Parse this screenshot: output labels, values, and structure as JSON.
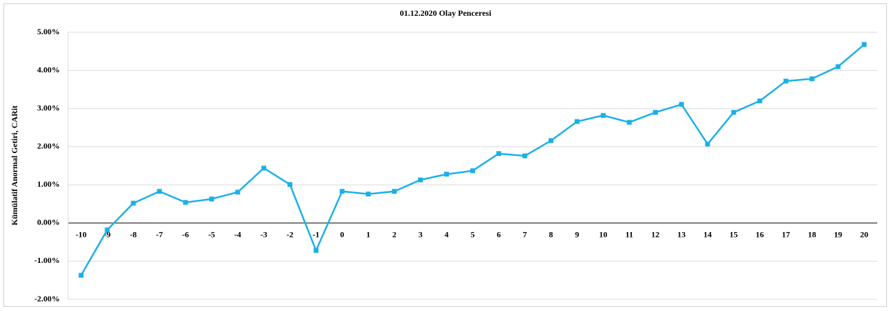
{
  "chart_data": {
    "type": "line",
    "title": "01.12.2020 Olay Penceresi",
    "ylabel": "Kümülatif Anormal Getiri, CARit",
    "categories": [
      "-10",
      "-9",
      "-8",
      "-7",
      "-6",
      "-5",
      "-4",
      "-3",
      "-2",
      "-1",
      "0",
      "1",
      "2",
      "3",
      "4",
      "5",
      "6",
      "7",
      "8",
      "9",
      "10",
      "11",
      "12",
      "13",
      "14",
      "15",
      "16",
      "17",
      "18",
      "19",
      "20"
    ],
    "series": [
      {
        "name": "CARit",
        "color": "#1ab0e8",
        "values": [
          -1.37,
          -0.18,
          0.52,
          0.83,
          0.54,
          0.63,
          0.81,
          1.44,
          1.01,
          -0.72,
          0.83,
          0.76,
          0.83,
          1.13,
          1.28,
          1.37,
          1.82,
          1.76,
          2.16,
          2.66,
          2.82,
          2.64,
          2.9,
          3.11,
          2.07,
          2.9,
          3.2,
          3.72,
          3.78,
          4.1,
          4.68
        ]
      }
    ],
    "ylim": [
      -2,
      5
    ],
    "yticks": [
      {
        "value": -2,
        "label": "-2.00%"
      },
      {
        "value": -1,
        "label": "-1.00%"
      },
      {
        "value": 0,
        "label": "0.00%"
      },
      {
        "value": 1,
        "label": "1.00%"
      },
      {
        "value": 2,
        "label": "2.00%"
      },
      {
        "value": 3,
        "label": "3.00%"
      },
      {
        "value": 4,
        "label": "4.00%"
      },
      {
        "value": 5,
        "label": "5.00%"
      }
    ],
    "grid": true
  }
}
